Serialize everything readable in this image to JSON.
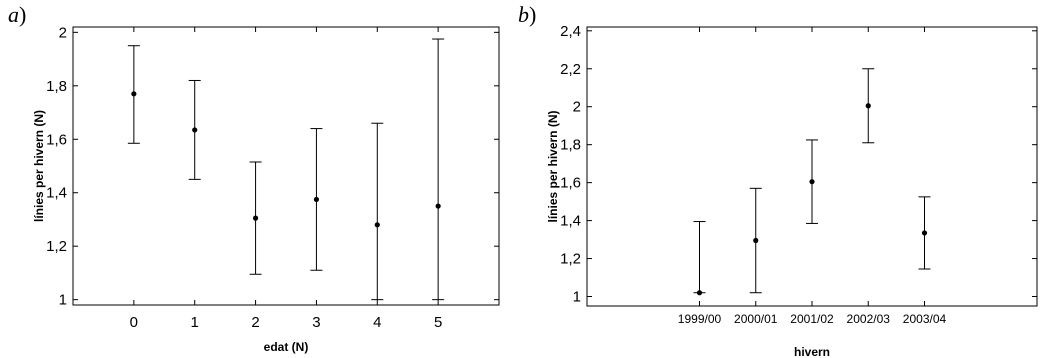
{
  "chart_data": [
    {
      "type": "scatter",
      "panel_label": "a",
      "title": "",
      "xlabel": "edat (N)",
      "ylabel": "línies per hivern (N)",
      "categories": [
        "0",
        "1",
        "2",
        "3",
        "4",
        "5"
      ],
      "x": [
        0,
        1,
        2,
        3,
        4,
        5
      ],
      "xlim": [
        -1,
        6
      ],
      "ylim": [
        0.98,
        2.02
      ],
      "yticks": [
        "1",
        "1,2",
        "1,4",
        "1,6",
        "1,8",
        "2"
      ],
      "ytick_values": [
        1,
        1.2,
        1.4,
        1.6,
        1.8,
        2
      ],
      "series": [
        {
          "values": [
            1.77,
            1.635,
            1.305,
            1.375,
            1.28,
            1.35
          ],
          "lower": [
            1.585,
            1.45,
            1.095,
            1.11,
            1.0,
            1.0
          ],
          "upper": [
            1.95,
            1.82,
            1.515,
            1.64,
            1.66,
            1.975
          ]
        }
      ],
      "error_bars": true,
      "grid": false,
      "legend": false
    },
    {
      "type": "scatter",
      "panel_label": "b",
      "title": "",
      "xlabel": "hivern",
      "ylabel": "línies per hivern (N)",
      "categories": [
        "1999/00",
        "2000/01",
        "2001/02",
        "2002/03",
        "2003/04"
      ],
      "xlim": [
        -2,
        6
      ],
      "ylim": [
        0.95,
        2.42
      ],
      "yticks": [
        "1",
        "1,2",
        "1,4",
        "1,6",
        "1,8",
        "2",
        "2,2",
        "2,4"
      ],
      "ytick_values": [
        1,
        1.2,
        1.4,
        1.6,
        1.8,
        2,
        2.2,
        2.4
      ],
      "series": [
        {
          "values": [
            1.02,
            1.295,
            1.605,
            2.005,
            1.335
          ],
          "lower": [
            1.02,
            1.02,
            1.385,
            1.81,
            1.145
          ],
          "upper": [
            1.395,
            1.57,
            1.825,
            2.2,
            1.525
          ]
        }
      ],
      "error_bars": true,
      "grid": false,
      "legend": false
    }
  ]
}
